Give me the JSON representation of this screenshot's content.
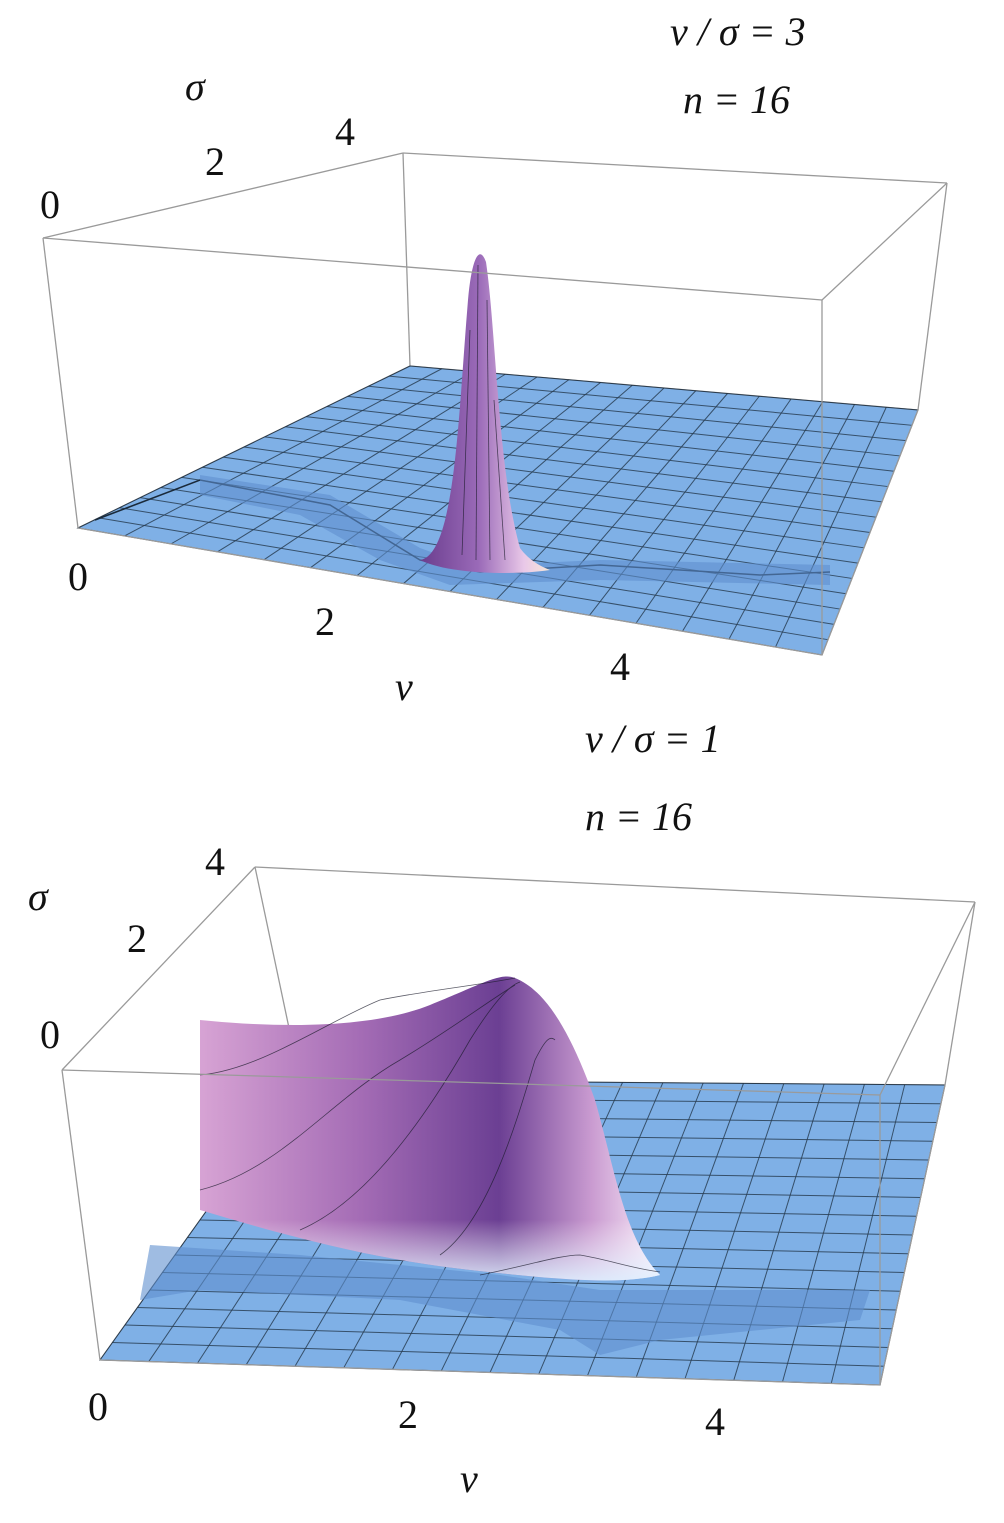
{
  "chart_data": [
    {
      "type": "surface",
      "annotations": [
        "ν / σ = 3",
        "n = 16"
      ],
      "xlabel": "ν",
      "ylabel": "σ",
      "xticks": [
        "0",
        "2",
        "4"
      ],
      "yticks": [
        "0",
        "2",
        "4"
      ],
      "xlim": [
        0,
        5
      ],
      "ylim": [
        0,
        5
      ],
      "colors": {
        "floor": "#7fb0e6",
        "surface": "#8a5aa8",
        "box": "#9a9a9a"
      }
    },
    {
      "type": "surface",
      "annotations": [
        "ν / σ = 1",
        "n = 16"
      ],
      "xlabel": "ν",
      "ylabel": "σ",
      "xticks": [
        "0",
        "2",
        "4"
      ],
      "yticks": [
        "0",
        "2",
        "4"
      ],
      "xlim": [
        0,
        5
      ],
      "ylim": [
        0,
        5
      ],
      "colors": {
        "floor": "#7fb0e6",
        "surface": "#8a5aa8",
        "box": "#9a9a9a"
      }
    }
  ]
}
